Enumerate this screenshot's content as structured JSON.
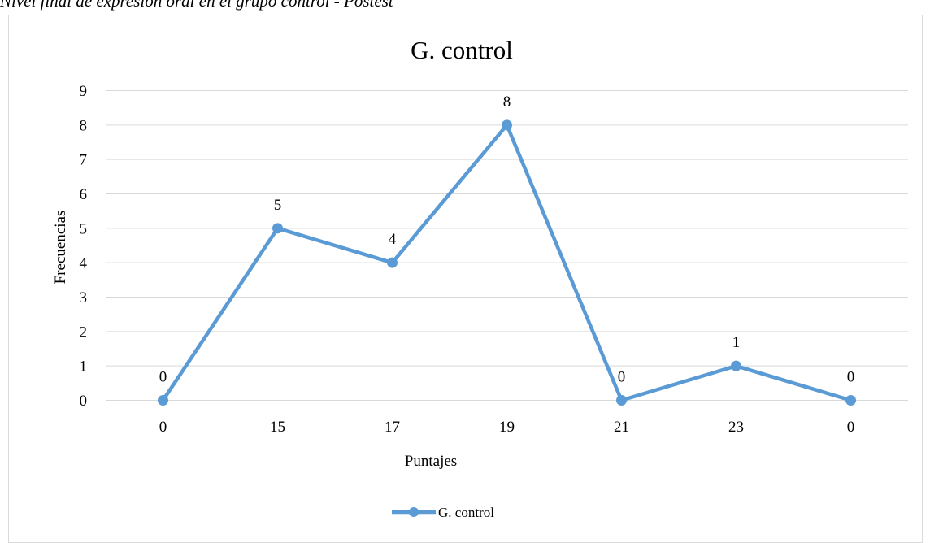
{
  "caption": "Nivel final de expresión oral en el grupo control - Postest",
  "colors": {
    "series": "#5b9bd5",
    "grid": "#d9d9d9",
    "frame": "#d9d9d9"
  },
  "chart_data": {
    "type": "line",
    "title": "G. control",
    "xlabel": "Puntajes",
    "ylabel": "Frecuencias",
    "categories": [
      "0",
      "15",
      "17",
      "19",
      "21",
      "23",
      "0"
    ],
    "ylim": [
      0,
      9
    ],
    "ytick_step": 1,
    "grid": true,
    "legend_position": "bottom",
    "series": [
      {
        "name": "G. control",
        "values": [
          0,
          5,
          4,
          8,
          0,
          1,
          0
        ],
        "data_labels": [
          "0",
          "5",
          "4",
          "8",
          "0",
          "1",
          "0"
        ]
      }
    ]
  }
}
